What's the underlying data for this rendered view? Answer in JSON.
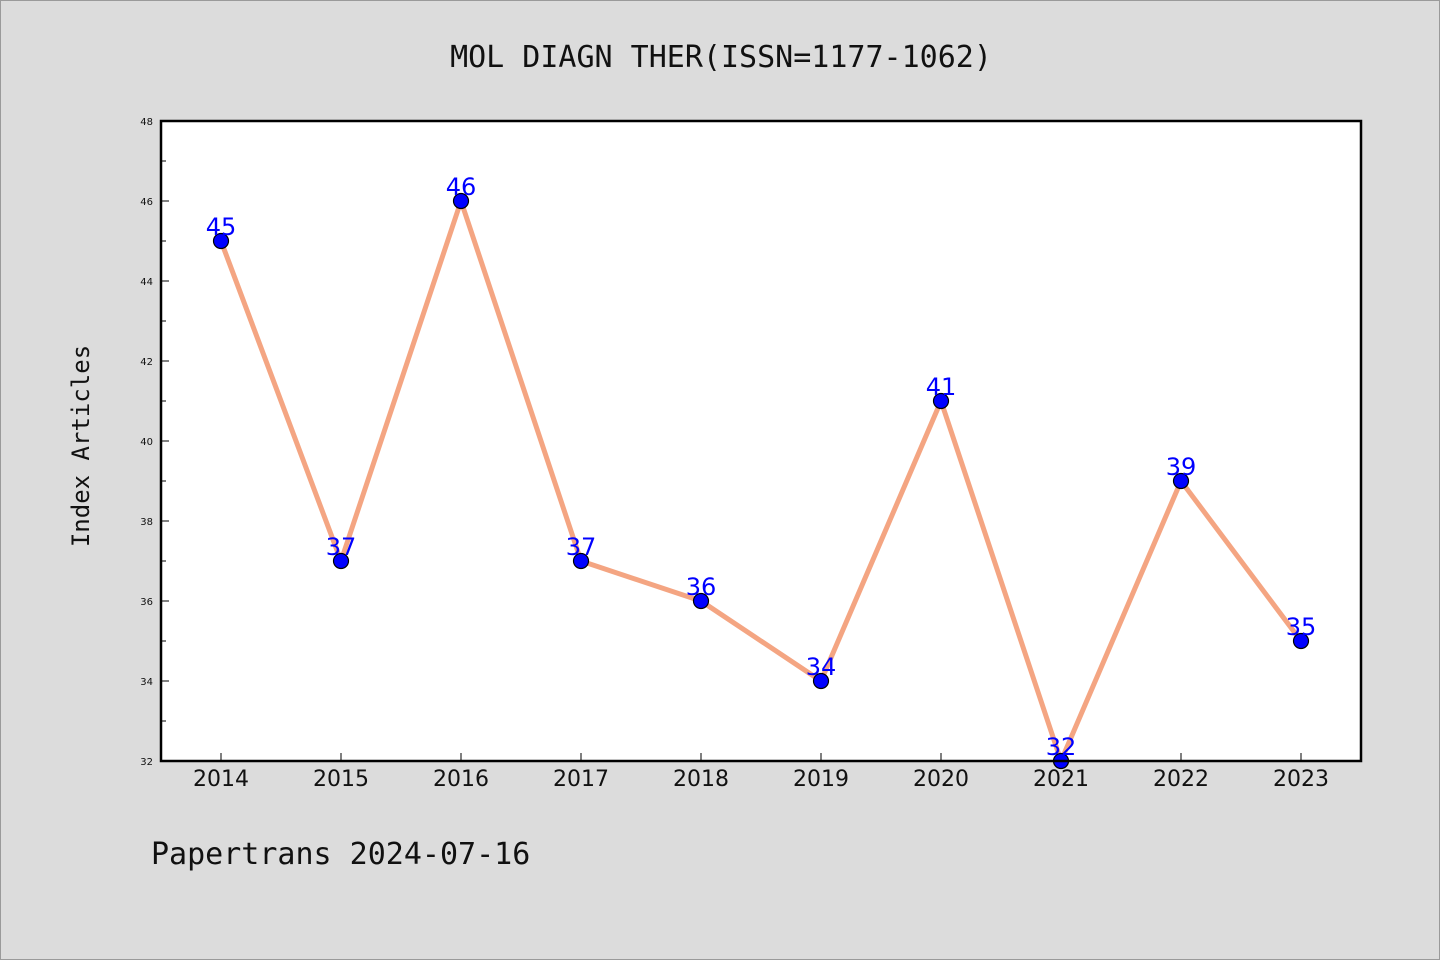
{
  "chart_data": {
    "type": "line",
    "title": "MOL DIAGN THER(ISSN=1177-1062)",
    "xlabel": "",
    "ylabel": "Index Articles",
    "x": [
      "2014",
      "2015",
      "2016",
      "2017",
      "2018",
      "2019",
      "2020",
      "2021",
      "2022",
      "2023"
    ],
    "values": [
      45,
      37,
      46,
      37,
      36,
      34,
      41,
      32,
      39,
      35
    ],
    "data_labels": [
      "45",
      "37",
      "46",
      "37",
      "36",
      "34",
      "41",
      "32",
      "39",
      "35"
    ],
    "y_ticks": [
      32,
      34,
      36,
      38,
      40,
      42,
      44,
      46,
      48
    ],
    "y_tick_labels": [
      "32",
      "34",
      "36",
      "38",
      "40",
      "42",
      "44",
      "46",
      "48"
    ],
    "ylim": [
      32,
      48
    ],
    "grid": false,
    "legend": "none",
    "colors": {
      "line": "#f4a582",
      "marker_fill": "#0000ff",
      "marker_edge": "#000000",
      "data_label": "#0000ff",
      "background": "#dcdcdc",
      "plot_background": "#ffffff",
      "axes": "#000000"
    }
  },
  "footer": {
    "text": "Papertrans 2024-07-16"
  }
}
